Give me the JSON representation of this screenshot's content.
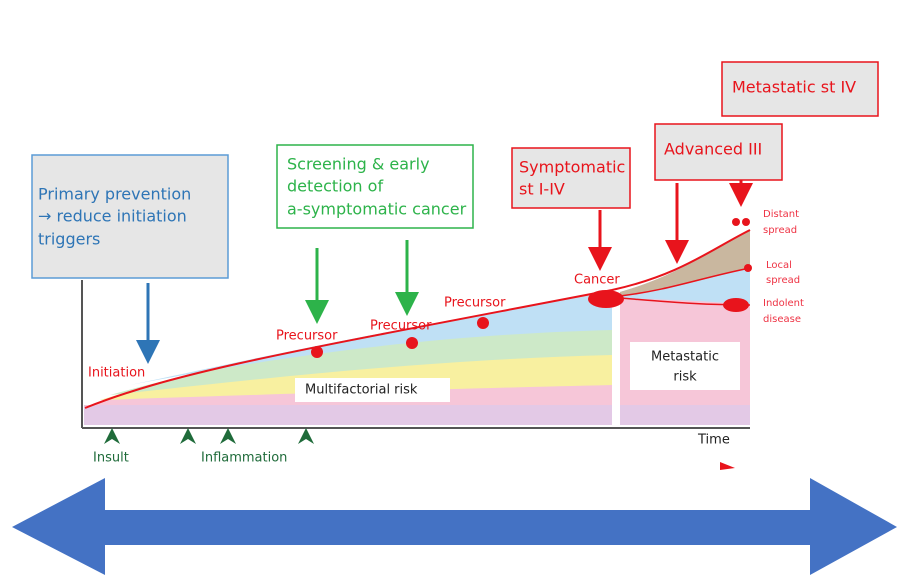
{
  "boxes": {
    "primary_prevention": [
      "Primary prevention",
      "→ reduce initiation",
      "triggers"
    ],
    "screening": [
      "Screening & early",
      "detection of",
      "a-symptomatic cancer"
    ],
    "symptomatic": [
      "Symptomatic",
      "st I-IV"
    ],
    "advanced": [
      "Advanced III"
    ],
    "metastatic": [
      "Metastatic st IV"
    ]
  },
  "diagram": {
    "initiation": "Initiation",
    "precursors": [
      "Precursor",
      "Precursor",
      "Precursor"
    ],
    "cancer": "Cancer",
    "multifactorial_risk": "Multifactorial risk",
    "metastatic_risk": [
      "Metastatic",
      "risk"
    ],
    "outcomes": {
      "distant": [
        "Distant",
        "spread"
      ],
      "local": [
        "Local",
        "spread"
      ],
      "indolent": [
        "Indolent",
        "disease"
      ]
    },
    "time": "Time",
    "insult": "Insult",
    "inflammation": "Inflammation"
  }
}
